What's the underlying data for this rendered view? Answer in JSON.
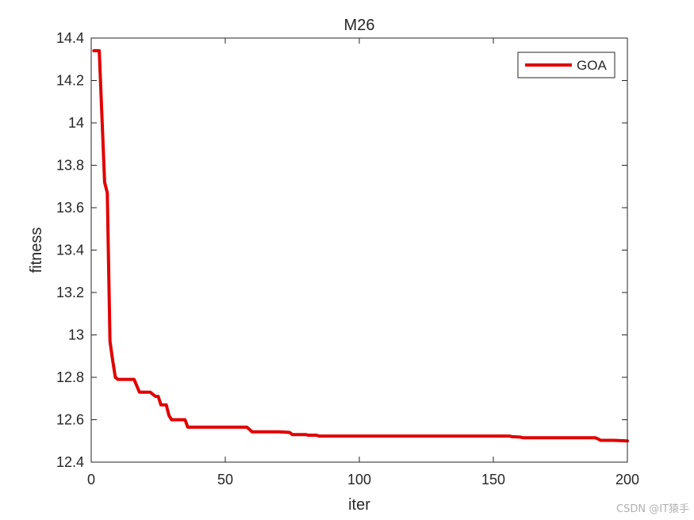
{
  "chart_data": {
    "type": "line",
    "title": "M26",
    "xlabel": "iter",
    "ylabel": "fitness",
    "xlim": [
      0,
      200
    ],
    "ylim": [
      12.4,
      14.4
    ],
    "xticks": [
      0,
      50,
      100,
      150,
      200
    ],
    "yticks": [
      12.4,
      12.6,
      12.8,
      13.0,
      13.2,
      13.4,
      13.6,
      13.8,
      14.0,
      14.2,
      14.4
    ],
    "xtick_labels": [
      "0",
      "50",
      "100",
      "150",
      "200"
    ],
    "ytick_labels": [
      "12.4",
      "12.6",
      "12.8",
      "13",
      "13.2",
      "13.4",
      "13.6",
      "13.8",
      "14",
      "14.2",
      "14.4"
    ],
    "grid": false,
    "legend": {
      "position": "top-right"
    },
    "series": [
      {
        "name": "GOA",
        "color": "#e00000",
        "x": [
          1,
          3,
          5,
          6,
          7,
          8,
          9,
          10,
          12,
          16,
          17,
          18,
          19,
          20,
          22,
          23,
          24,
          25,
          26,
          27,
          28,
          29,
          30,
          31,
          35,
          36,
          37,
          40,
          50,
          58,
          59,
          60,
          65,
          70,
          74,
          75,
          80,
          81,
          84,
          85,
          90,
          100,
          120,
          150,
          156,
          157,
          160,
          161,
          170,
          180,
          188,
          189,
          190,
          195,
          200
        ],
        "y": [
          14.34,
          14.34,
          13.72,
          13.67,
          12.97,
          12.88,
          12.8,
          12.79,
          12.79,
          12.79,
          12.76,
          12.73,
          12.73,
          12.73,
          12.73,
          12.72,
          12.71,
          12.71,
          12.67,
          12.67,
          12.67,
          12.62,
          12.6,
          12.6,
          12.6,
          12.565,
          12.565,
          12.565,
          12.565,
          12.565,
          12.555,
          12.543,
          12.543,
          12.543,
          12.54,
          12.53,
          12.53,
          12.527,
          12.527,
          12.523,
          12.523,
          12.523,
          12.523,
          12.523,
          12.523,
          12.52,
          12.518,
          12.515,
          12.515,
          12.515,
          12.515,
          12.51,
          12.503,
          12.503,
          12.5
        ]
      }
    ]
  },
  "watermark": "CSDN @IT猿手"
}
